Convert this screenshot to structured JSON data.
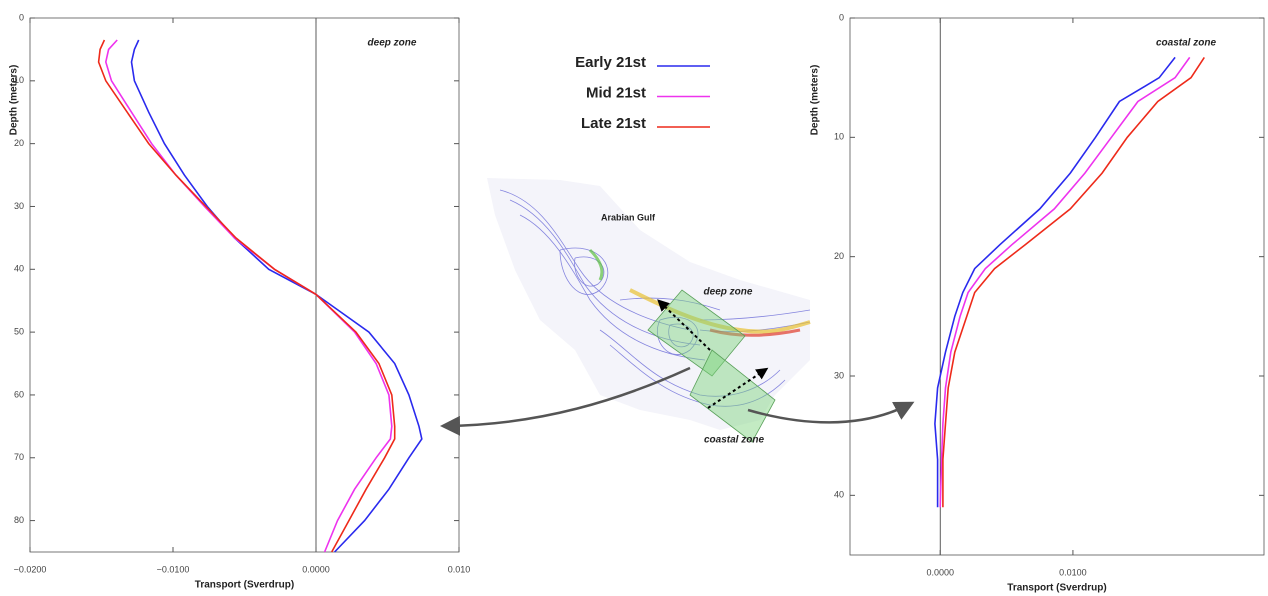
{
  "chart_data": [
    {
      "type": "line",
      "x_label": "Transport (Sverdrup)",
      "y_label": "Depth (meters)",
      "annotation": "deep zone",
      "xlim": [
        -0.02,
        0.01
      ],
      "xticks": [
        {
          "value": -0.02,
          "label": "−0.0200"
        },
        {
          "value": -0.01,
          "label": "−0.0100"
        },
        {
          "value": 0,
          "label": "0.0000"
        },
        {
          "value": 0.01,
          "label": "0.010"
        }
      ],
      "ylim": [
        0,
        85
      ],
      "yticks": [
        0,
        10,
        20,
        30,
        40,
        50,
        60,
        70,
        80
      ],
      "y_inverted": true,
      "y": [
        3.5,
        5,
        7,
        10,
        15,
        20,
        25,
        30,
        35,
        40,
        44,
        50,
        55,
        60,
        65,
        67,
        70,
        75,
        80,
        85
      ],
      "series": [
        {
          "name": "Early 21st",
          "color": "#2a2aee",
          "values": [
            -0.0124,
            -0.0127,
            -0.0129,
            -0.0127,
            -0.0117,
            -0.0106,
            -0.0092,
            -0.0076,
            -0.0057,
            -0.0033,
            0,
            0.0037,
            0.0055,
            0.0065,
            0.0072,
            0.0074,
            0.0065,
            0.0051,
            0.0034,
            0.0013
          ]
        },
        {
          "name": "Mid 21st",
          "color": "#ee33ee",
          "values": [
            -0.0139,
            -0.0145,
            -0.0147,
            -0.0143,
            -0.0129,
            -0.0115,
            -0.0098,
            -0.0078,
            -0.0057,
            -0.0029,
            0,
            0.0027,
            0.0042,
            0.0051,
            0.0053,
            0.0052,
            0.0042,
            0.0027,
            0.0015,
            0.0006
          ]
        },
        {
          "name": "Late 21st",
          "color": "#ee2a1a",
          "values": [
            -0.0148,
            -0.0151,
            -0.0152,
            -0.0147,
            -0.0132,
            -0.0117,
            -0.0098,
            -0.0077,
            -0.0056,
            -0.0029,
            0,
            0.0028,
            0.0044,
            0.0053,
            0.0055,
            0.0055,
            0.0048,
            0.0035,
            0.0023,
            0.0011
          ]
        }
      ]
    },
    {
      "type": "line",
      "x_label": "Transport (Sverdrup)",
      "y_label": "Depth (meters)",
      "annotation": "coastal zone",
      "xlim": [
        -0.0068,
        0.0244
      ],
      "xticks": [
        {
          "value": 0,
          "label": "0.0000"
        },
        {
          "value": 0.01,
          "label": "0.0100"
        }
      ],
      "ylim": [
        0,
        45
      ],
      "yticks": [
        0,
        10,
        20,
        30,
        40
      ],
      "y_inverted": true,
      "y": [
        3.3,
        5,
        7,
        10,
        13,
        16,
        19,
        21,
        23,
        25,
        28,
        31,
        34,
        37,
        41
      ],
      "series": [
        {
          "color": "#2a2aee",
          "values": [
            0.0177,
            0.0165,
            0.0135,
            0.0117,
            0.0098,
            0.0075,
            0.0045,
            0.0026,
            0.0017,
            0.0011,
            0.0004,
            -0.0002,
            -0.0004,
            -0.0002,
            -0.0002
          ]
        },
        {
          "color": "#ee33ee",
          "values": [
            0.0188,
            0.0177,
            0.0149,
            0.0129,
            0.0109,
            0.0086,
            0.0054,
            0.0034,
            0.0021,
            0.0015,
            0.0008,
            0.0004,
            0.0002,
            0.0001,
            0
          ]
        },
        {
          "color": "#ee2a1a",
          "values": [
            0.0199,
            0.0189,
            0.0164,
            0.0141,
            0.0122,
            0.0098,
            0.0064,
            0.0041,
            0.0026,
            0.002,
            0.0011,
            0.0006,
            0.0004,
            0.0002,
            0.0002
          ]
        }
      ]
    }
  ],
  "map": {
    "labels": [
      "Arabian Gulf",
      "deep zone",
      "coastal zone"
    ]
  }
}
